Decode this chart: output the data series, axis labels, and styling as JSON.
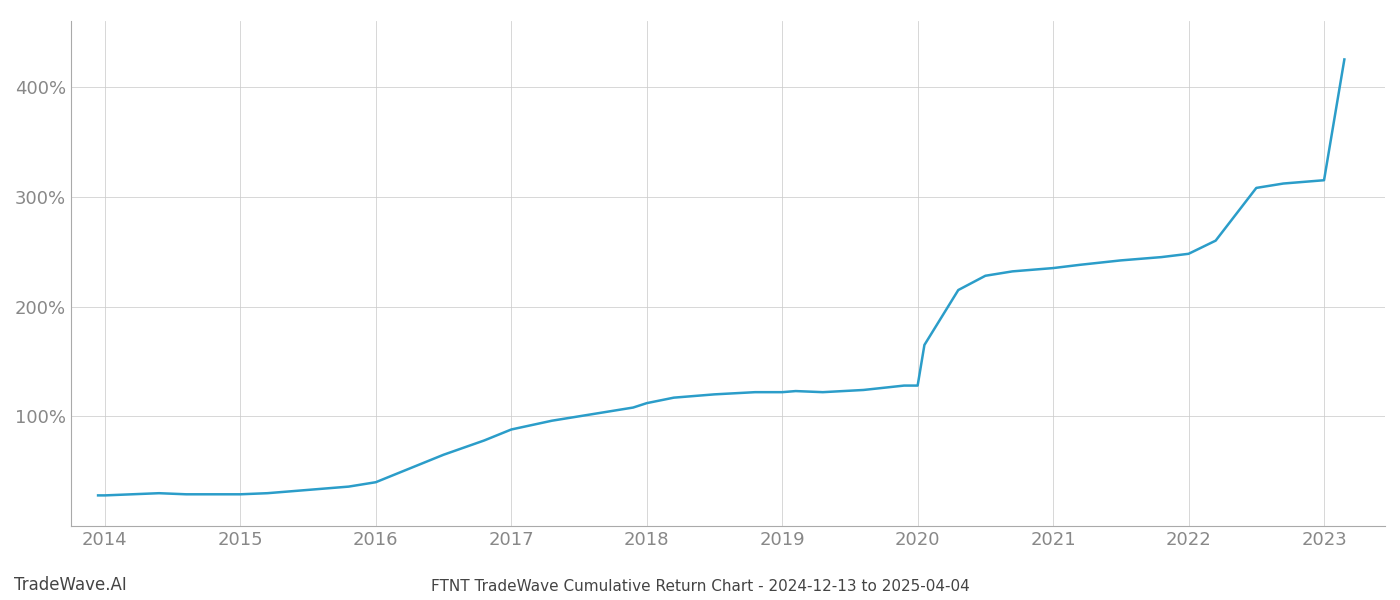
{
  "title": "FTNT TradeWave Cumulative Return Chart - 2024-12-13 to 2025-04-04",
  "watermark": "TradeWave.AI",
  "line_color": "#2b9dc9",
  "background_color": "#ffffff",
  "grid_color": "#cccccc",
  "x_years": [
    2013.95,
    2014.0,
    2014.2,
    2014.4,
    2014.6,
    2014.8,
    2015.0,
    2015.2,
    2015.4,
    2015.6,
    2015.8,
    2016.0,
    2016.2,
    2016.5,
    2016.8,
    2017.0,
    2017.3,
    2017.6,
    2017.9,
    2018.0,
    2018.2,
    2018.5,
    2018.8,
    2019.0,
    2019.1,
    2019.3,
    2019.6,
    2019.9,
    2020.0,
    2020.05,
    2020.3,
    2020.5,
    2020.7,
    2021.0,
    2021.2,
    2021.5,
    2021.8,
    2022.0,
    2022.2,
    2022.5,
    2022.7,
    2023.0,
    2023.15
  ],
  "y_values": [
    28,
    28,
    29,
    30,
    29,
    29,
    29,
    30,
    32,
    34,
    36,
    40,
    50,
    65,
    78,
    88,
    96,
    102,
    108,
    112,
    117,
    120,
    122,
    122,
    123,
    122,
    124,
    128,
    128,
    165,
    215,
    228,
    232,
    235,
    238,
    242,
    245,
    248,
    260,
    308,
    312,
    315,
    425
  ],
  "yticks": [
    100,
    200,
    300,
    400
  ],
  "ytick_labels": [
    "100%",
    "200%",
    "300%",
    "400%"
  ],
  "xticks": [
    2014,
    2015,
    2016,
    2017,
    2018,
    2019,
    2020,
    2021,
    2022,
    2023
  ],
  "xlim": [
    2013.75,
    2023.45
  ],
  "ylim": [
    0,
    460
  ],
  "title_fontsize": 11,
  "tick_fontsize": 13,
  "watermark_fontsize": 12,
  "line_width": 1.8,
  "spine_color": "#aaaaaa",
  "tick_color": "#888888"
}
